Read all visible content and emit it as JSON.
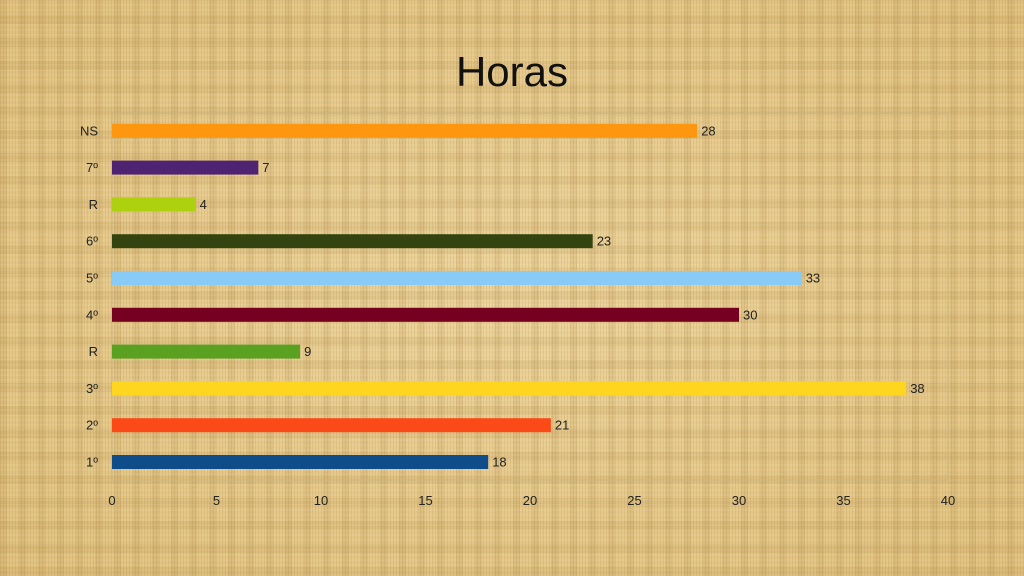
{
  "chart_data": {
    "type": "bar",
    "orientation": "horizontal",
    "title": "Horas",
    "categories": [
      "1º",
      "2º",
      "3º",
      "R",
      "4º",
      "5º",
      "6º",
      "R",
      "7º",
      "NS"
    ],
    "values": [
      18,
      21,
      38,
      9,
      30,
      33,
      23,
      4,
      7,
      28
    ],
    "colors": [
      "#0e4c8a",
      "#fb4a17",
      "#ffd61f",
      "#5aa121",
      "#76001f",
      "#89cbf7",
      "#344410",
      "#aed10f",
      "#4e2472",
      "#ff960f"
    ],
    "xlabel": "",
    "ylabel": "",
    "xlim": [
      0,
      40
    ],
    "xticks": [
      0,
      5,
      10,
      15,
      20,
      25,
      30,
      35,
      40
    ],
    "grid": false,
    "legend": "none",
    "data_labels": true
  }
}
